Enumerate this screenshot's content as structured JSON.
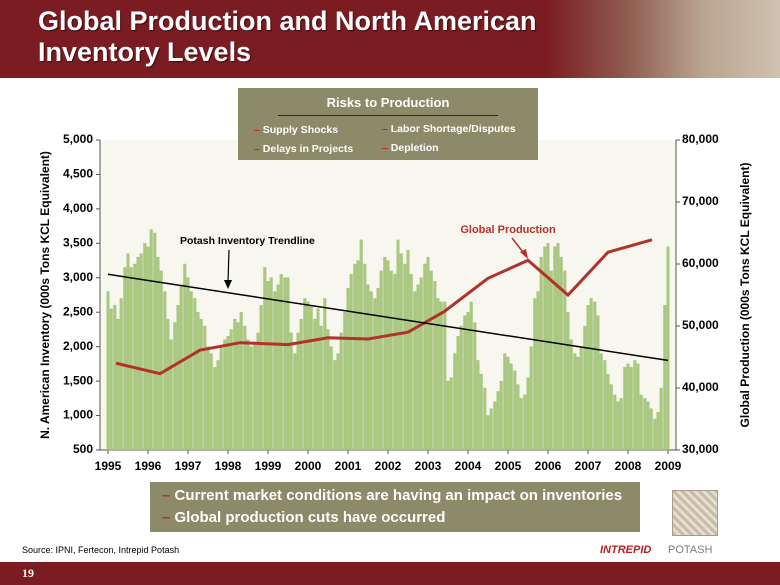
{
  "slide": {
    "title": "Global Production and North American Inventory Levels",
    "risks": {
      "title": "Risks to Production",
      "items": [
        "Supply Shocks",
        "Labor Shortage/Disputes",
        "Delays in Projects",
        "Depletion"
      ]
    },
    "bullets": [
      "Current market conditions are having an impact on inventories",
      "Global production cuts have occurred"
    ],
    "source": "Source: IPNI, Fertecon, Intrepid Potash",
    "page_number": "19",
    "logo": [
      "INTREPID",
      "POTASH"
    ]
  },
  "chart_data": {
    "type": "combo",
    "y_label": "N. American Inventory (000s Tons KCL Equivalent)",
    "y2_label": "Global Production (000s Tons KCL Equivalent)",
    "xlim": [
      1994.8,
      2009.2
    ],
    "xticks": [
      1995,
      1996,
      1997,
      1998,
      1999,
      2000,
      2001,
      2002,
      2003,
      2004,
      2005,
      2006,
      2007,
      2008,
      2009
    ],
    "ylim": [
      500,
      5000
    ],
    "yticks": [
      500,
      {
        "value": 1000,
        "label": "1,000"
      },
      {
        "value": 1500,
        "label": "1,500"
      },
      {
        "value": 2000,
        "label": "2,000"
      },
      {
        "value": 2500,
        "label": "2,500"
      },
      {
        "value": 3000,
        "label": "3,000"
      },
      {
        "value": 3500,
        "label": "3,500"
      },
      {
        "value": 4000,
        "label": "4,000"
      },
      {
        "value": 4500,
        "label": "4,500"
      },
      {
        "value": 5000,
        "label": "5,000"
      }
    ],
    "y2lim": [
      30000,
      80000
    ],
    "y2ticks": [
      {
        "value": 30000,
        "label": "30,000"
      },
      {
        "value": 40000,
        "label": "40,000"
      },
      {
        "value": 50000,
        "label": "50,000"
      },
      {
        "value": 60000,
        "label": "60,000"
      },
      {
        "value": 70000,
        "label": "70,000"
      },
      {
        "value": 80000,
        "label": "80,000"
      }
    ],
    "series": [
      {
        "type": "bar",
        "color": "#a9c97e",
        "x": [
          1995,
          1995.08,
          1995.17,
          1995.25,
          1995.33,
          1995.42,
          1995.5,
          1995.58,
          1995.67,
          1995.75,
          1995.83,
          1995.92,
          1996,
          1996.08,
          1996.17,
          1996.25,
          1996.33,
          1996.42,
          1996.5,
          1996.58,
          1996.67,
          1996.75,
          1996.83,
          1996.92,
          1997,
          1997.08,
          1997.17,
          1997.25,
          1997.33,
          1997.42,
          1997.5,
          1997.58,
          1997.67,
          1997.75,
          1997.83,
          1997.92,
          1998,
          1998.08,
          1998.17,
          1998.25,
          1998.33,
          1998.42,
          1998.5,
          1998.58,
          1998.67,
          1998.75,
          1998.83,
          1998.92,
          1999,
          1999.08,
          1999.17,
          1999.25,
          1999.33,
          1999.42,
          1999.5,
          1999.58,
          1999.67,
          1999.75,
          1999.83,
          1999.92,
          2000,
          2000.08,
          2000.17,
          2000.25,
          2000.33,
          2000.42,
          2000.5,
          2000.58,
          2000.67,
          2000.75,
          2000.83,
          2000.92,
          2001,
          2001.08,
          2001.17,
          2001.25,
          2001.33,
          2001.42,
          2001.5,
          2001.58,
          2001.67,
          2001.75,
          2001.83,
          2001.92,
          2002,
          2002.08,
          2002.17,
          2002.25,
          2002.33,
          2002.42,
          2002.5,
          2002.58,
          2002.67,
          2002.75,
          2002.83,
          2002.92,
          2003,
          2003.08,
          2003.17,
          2003.25,
          2003.33,
          2003.42,
          2003.5,
          2003.58,
          2003.67,
          2003.75,
          2003.83,
          2003.92,
          2004,
          2004.08,
          2004.17,
          2004.25,
          2004.33,
          2004.42,
          2004.5,
          2004.58,
          2004.67,
          2004.75,
          2004.83,
          2004.92,
          2005,
          2005.08,
          2005.17,
          2005.25,
          2005.33,
          2005.42,
          2005.5,
          2005.58,
          2005.67,
          2005.75,
          2005.83,
          2005.92,
          2006,
          2006.08,
          2006.17,
          2006.25,
          2006.33,
          2006.42,
          2006.5,
          2006.58,
          2006.67,
          2006.75,
          2006.83,
          2006.92,
          2007,
          2007.08,
          2007.17,
          2007.25,
          2007.33,
          2007.42,
          2007.5,
          2007.58,
          2007.67,
          2007.75,
          2007.83,
          2007.92,
          2008,
          2008.08,
          2008.17,
          2008.25,
          2008.33,
          2008.42,
          2008.5,
          2008.58,
          2008.67,
          2008.75,
          2008.83,
          2008.92,
          2009
        ],
        "values": [
          2800,
          2550,
          2600,
          2400,
          2700,
          3150,
          3350,
          3150,
          3200,
          3300,
          3350,
          3500,
          3450,
          3700,
          3650,
          3300,
          3100,
          2800,
          2400,
          2100,
          2350,
          2600,
          2900,
          3200,
          3000,
          2800,
          2700,
          2500,
          2400,
          2300,
          2000,
          1900,
          1700,
          1800,
          2000,
          2100,
          2150,
          2250,
          2400,
          2350,
          2500,
          2300,
          2100,
          2000,
          2050,
          2200,
          2600,
          3150,
          2950,
          3000,
          2800,
          2900,
          3050,
          3000,
          3000,
          2200,
          1900,
          2200,
          2400,
          2700,
          2650,
          2600,
          2400,
          2550,
          2300,
          2700,
          2250,
          2000,
          1800,
          1900,
          2200,
          2500,
          2850,
          3050,
          3200,
          3250,
          3550,
          3200,
          2900,
          2800,
          2700,
          2850,
          3100,
          3300,
          3250,
          3100,
          3050,
          3550,
          3350,
          3200,
          3400,
          3050,
          2800,
          2900,
          3000,
          3200,
          3300,
          3100,
          2950,
          2700,
          2650,
          2650,
          1500,
          1550,
          1900,
          2150,
          2300,
          2450,
          2500,
          2650,
          2350,
          1800,
          1600,
          1400,
          1000,
          1100,
          1200,
          1350,
          1500,
          1900,
          1850,
          1750,
          1650,
          1450,
          1250,
          1300,
          1550,
          2000,
          2700,
          2800,
          3300,
          3450,
          3500,
          3100,
          3450,
          3500,
          3300,
          3100,
          2500,
          2100,
          1900,
          1850,
          2000,
          2300,
          2600,
          2700,
          2650,
          2450,
          1900,
          1800,
          1600,
          1450,
          1300,
          1200,
          1250,
          1700,
          1750,
          1700,
          1800,
          1750,
          1300,
          1250,
          1200,
          1100,
          950,
          1050,
          1400,
          2600,
          3450
        ]
      },
      {
        "type": "line",
        "name": "Global Production",
        "axis": "y2",
        "color": "#b3312b",
        "x": [
          1995.2,
          1996.3,
          1997.3,
          1998.3,
          1999.5,
          2000.5,
          2001.5,
          2002.5,
          2003.4,
          2004.5,
          2005.5,
          2006.5,
          2007.5,
          2008.6
        ],
        "values": [
          44000,
          42300,
          46100,
          47300,
          47000,
          48100,
          47900,
          49000,
          52300,
          57700,
          60600,
          55000,
          61900,
          63900
        ]
      },
      {
        "type": "line",
        "name": "Potash Inventory Trendline",
        "color": "#000000",
        "x": [
          1995,
          2009
        ],
        "values": [
          3050,
          1800
        ]
      }
    ]
  }
}
